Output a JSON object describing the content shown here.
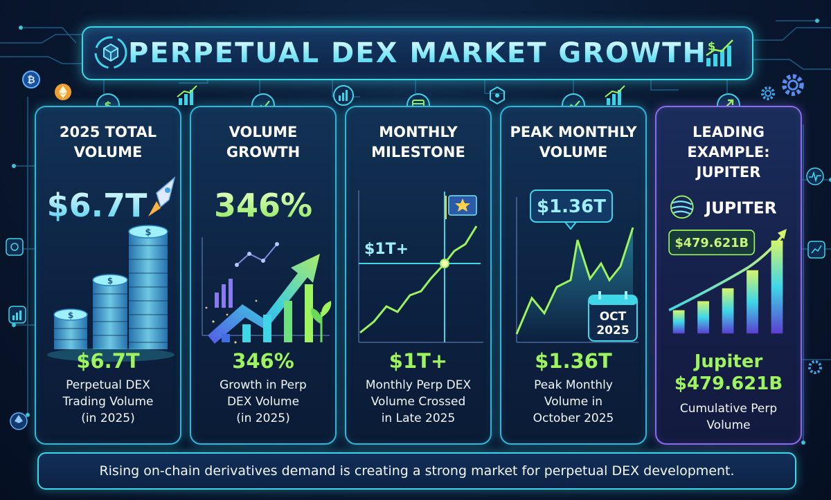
{
  "title": "PERPETUAL DEX MARKET GROWTH",
  "cards": [
    {
      "title_line1": "2025 TOTAL",
      "title_line2": "VOLUME",
      "big_value": "$6.7T",
      "stat": "$6.7T",
      "desc_line1": "Perpetual DEX",
      "desc_line2": "Trading Volume",
      "desc_line3": "(in 2025)"
    },
    {
      "title_line1": "VOLUME",
      "title_line2": "GROWTH",
      "big_value": "346%",
      "stat": "346%",
      "desc_line1": "Growth in Perp",
      "desc_line2": "DEX Volume",
      "desc_line3": "(in 2025)"
    },
    {
      "title_line1": "MONTHLY",
      "title_line2": "MILESTONE",
      "chart_label": "$1T+",
      "stat": "$1T+",
      "desc_line1": "Monthly Perp DEX",
      "desc_line2": "Volume Crossed",
      "desc_line3": "in Late 2025"
    },
    {
      "title_line1": "PEAK MONTHLY",
      "title_line2": "VOLUME",
      "callout": "$1.36T",
      "calendar_month": "OCT",
      "calendar_year": "2025",
      "stat": "$1.36T",
      "desc_line1": "Peak Monthly",
      "desc_line2": "Volume in",
      "desc_line3": "October 2025"
    },
    {
      "title_line1": "LEADING",
      "title_line2": "EXAMPLE:",
      "title_line3": "JUPITER",
      "brand": "JUPITER",
      "callout": "$479.621B",
      "stat_line1": "Jupiter",
      "stat_line2": "$479.621B",
      "desc_line1": "Cumulative Perp",
      "desc_line2": "Volume"
    }
  ],
  "footer": "Rising on-chain derivatives demand is creating a strong market for perpetual DEX development.",
  "colors": {
    "accent_cyan": "#3fd6e8",
    "stat_green": "#9df45f",
    "card_purple": "#8a6cf0",
    "background": "#0a1a33"
  },
  "icons": [
    "cube-cycle-icon",
    "bar-chart-dollar-icon",
    "bitcoin-icon",
    "ethereum-icon",
    "gear-icon",
    "rocket-icon",
    "calendar-icon",
    "star-flag-icon",
    "jupiter-logo-icon",
    "plant-sprout-icon",
    "network-icon",
    "dollar-coin-icon"
  ]
}
